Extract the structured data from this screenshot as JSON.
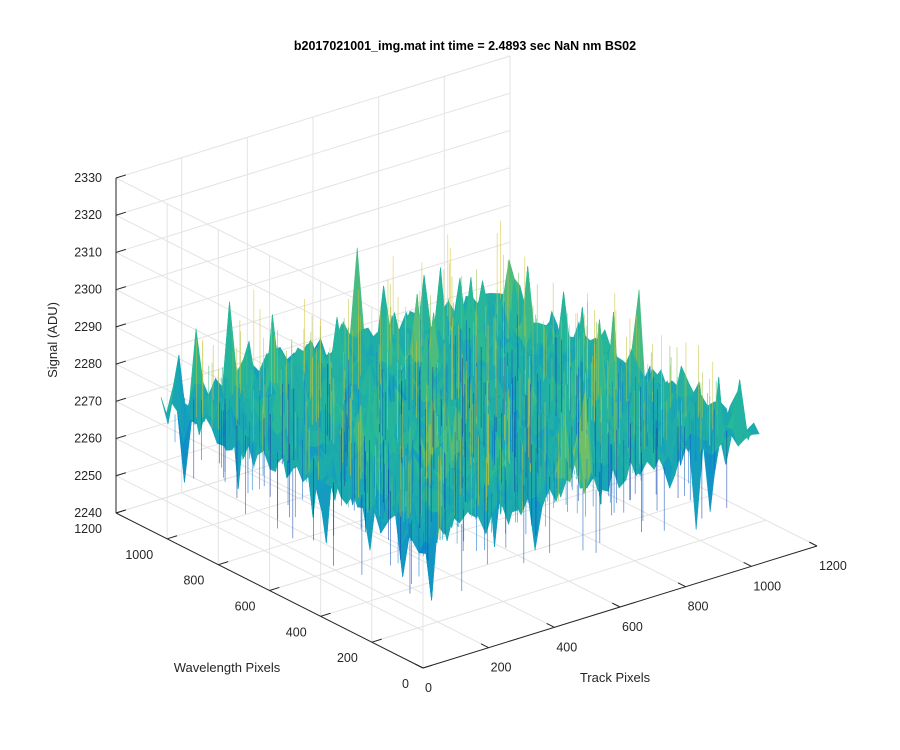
{
  "chart_data": {
    "type": "surface",
    "title": "b2017021001_img.mat int time = 2.4893 sec  NaN nm BS02",
    "xlabel": "Track Pixels",
    "ylabel": "Wavelength Pixels",
    "zlabel": "Signal (ADU)",
    "xlim": [
      0,
      1200
    ],
    "ylim": [
      0,
      1200
    ],
    "zlim": [
      2240,
      2330
    ],
    "x_ticks": [
      "0",
      "200",
      "400",
      "600",
      "800",
      "1000",
      "1200"
    ],
    "y_ticks": [
      "0",
      "200",
      "400",
      "600",
      "800",
      "1000",
      "1200"
    ],
    "z_ticks": [
      "2240",
      "2250",
      "2260",
      "2270",
      "2280",
      "2290",
      "2300",
      "2310",
      "2320",
      "2330"
    ],
    "data_extent": {
      "x": [
        0,
        1024
      ],
      "y": [
        0,
        1024
      ]
    },
    "signal_mean": 2275,
    "signal_range": [
      2245,
      2305
    ],
    "grid": true,
    "colormap": "parula",
    "colors": {
      "low": "#0072BD",
      "mid": "#1FB5A0",
      "high": "#E5C13A"
    }
  }
}
